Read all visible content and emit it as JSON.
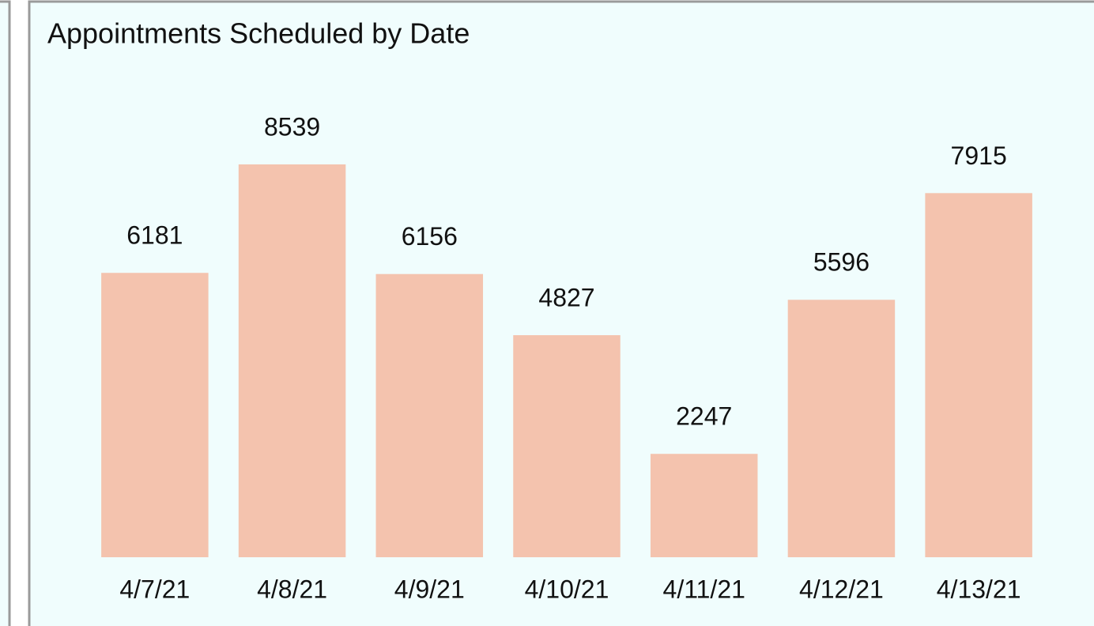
{
  "chart_data": {
    "type": "bar",
    "title": "Appointments Scheduled by Date",
    "categories": [
      "4/7/21",
      "4/8/21",
      "4/9/21",
      "4/10/21",
      "4/11/21",
      "4/12/21",
      "4/13/21"
    ],
    "values": [
      6181,
      8539,
      6156,
      4827,
      2247,
      5596,
      7915
    ],
    "color": "#f4c3ae"
  }
}
